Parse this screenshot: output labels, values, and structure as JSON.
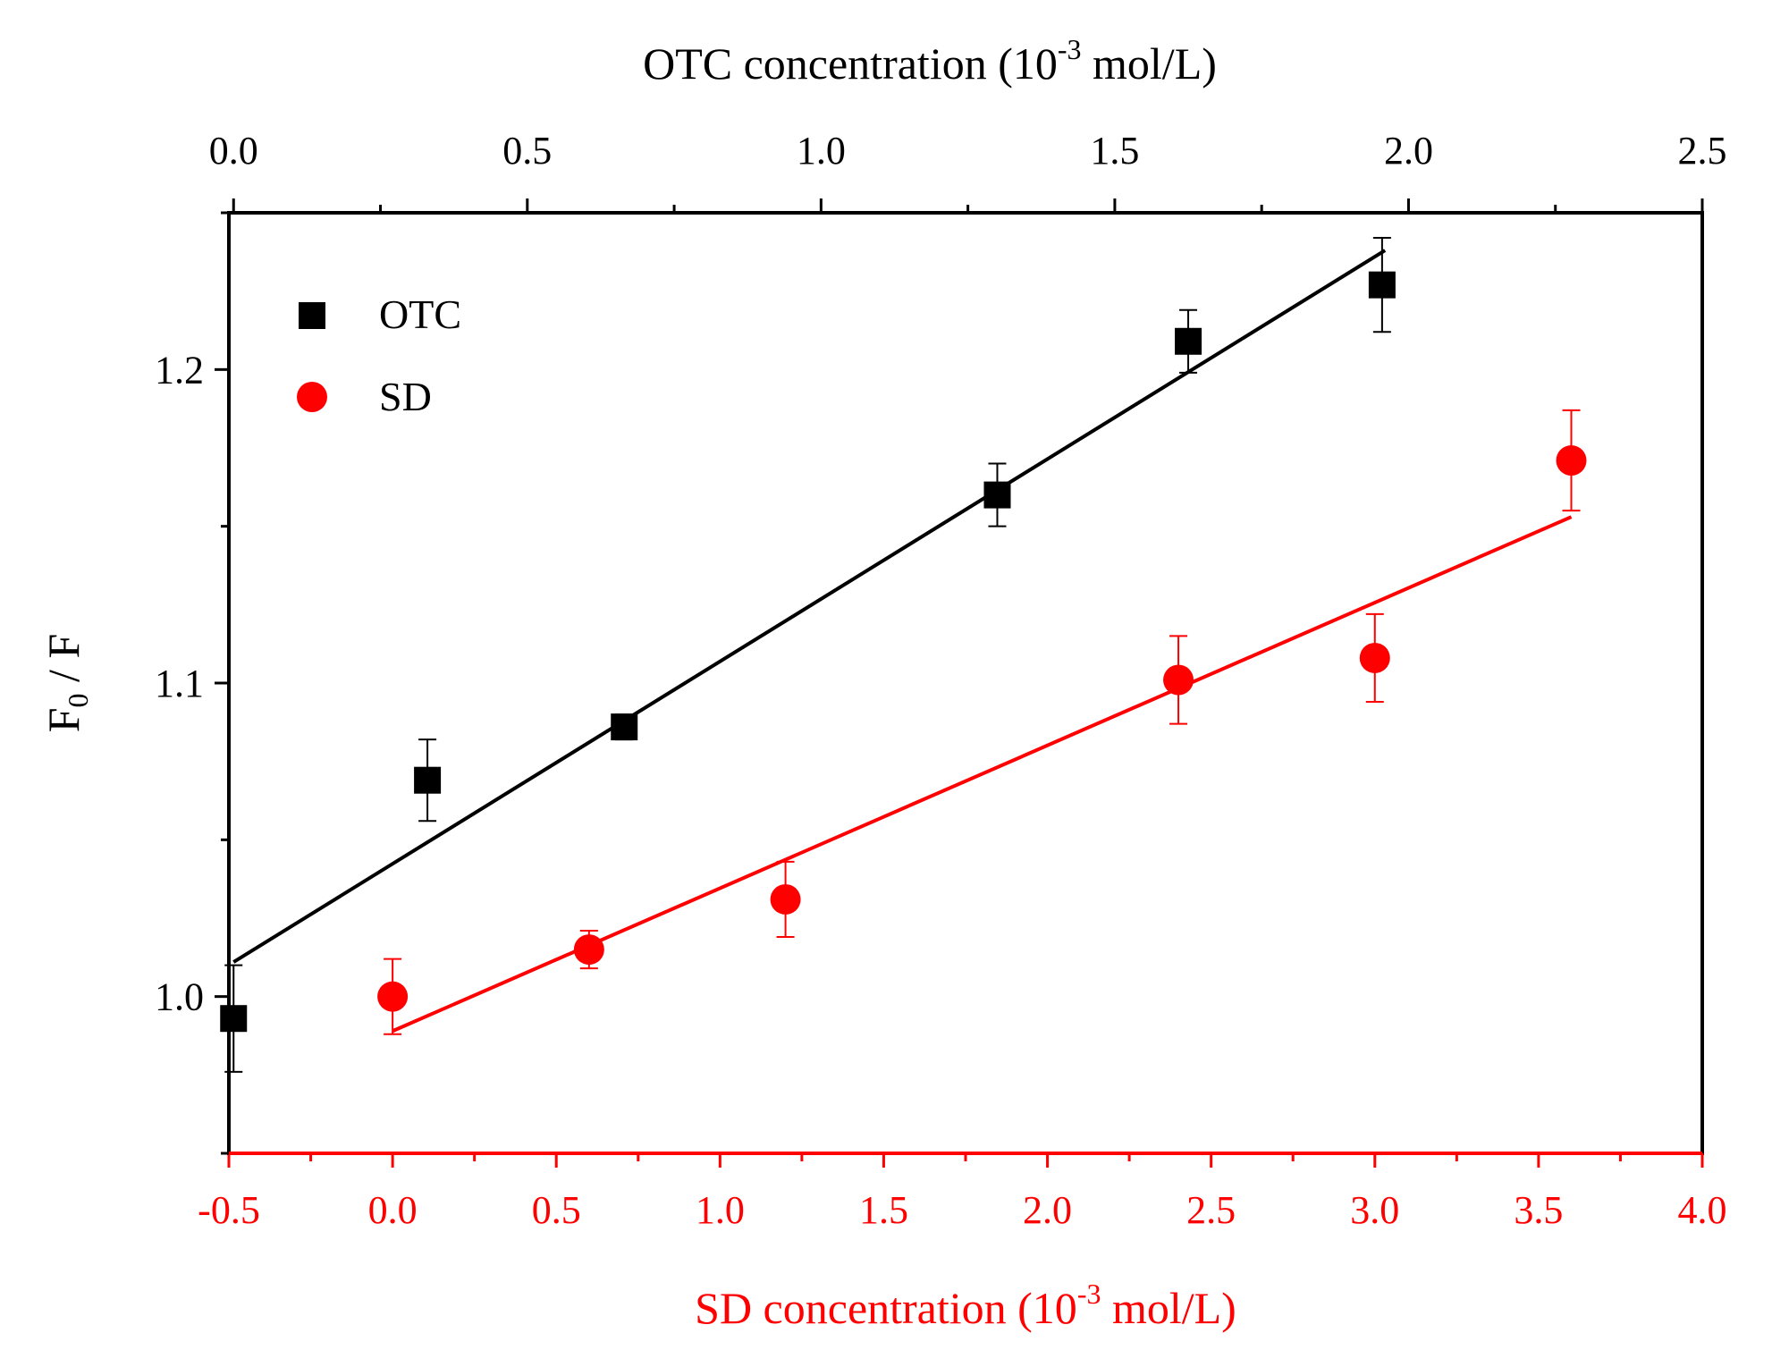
{
  "chart_data": {
    "type": "scatter",
    "ylabel": "F",
    "ylabel_subscript": "0",
    "ylabel_suffix": " / F",
    "ylim": [
      0.95,
      1.25
    ],
    "yticks": [
      "1.0",
      "1.1",
      "1.2"
    ],
    "bottom_axis": {
      "label_prefix": "SD concentration (10",
      "label_exp": "-3",
      "label_suffix": " mol/L)",
      "range": [
        -0.5,
        4.0
      ],
      "ticks": [
        "-0.5",
        "0.0",
        "0.5",
        "1.0",
        "1.5",
        "2.0",
        "2.5",
        "3.0",
        "3.5",
        "4.0"
      ]
    },
    "top_axis": {
      "label_prefix": "OTC concentration (10",
      "label_exp": "-3",
      "label_suffix": " mol/L)",
      "range": [
        -0.008,
        2.5
      ],
      "ticks": [
        "0.0",
        "0.5",
        "1.0",
        "1.5",
        "2.0",
        "2.5"
      ]
    },
    "series": [
      {
        "name": "OTC",
        "color": "#000000",
        "marker": "square",
        "axis": "top",
        "x": [
          0.0,
          0.33,
          0.665,
          1.3,
          1.625,
          1.955
        ],
        "y": [
          0.993,
          1.069,
          1.086,
          1.16,
          1.209,
          1.227
        ],
        "err": [
          0.017,
          0.013,
          0.004,
          0.01,
          0.01,
          0.015
        ],
        "fit": {
          "x": [
            0.0,
            1.96
          ],
          "y": [
            1.011,
            1.238
          ]
        }
      },
      {
        "name": "SD",
        "color": "#ff0000",
        "marker": "circle",
        "axis": "bottom",
        "x": [
          0.0,
          0.6,
          1.2,
          2.4,
          3.0,
          3.6
        ],
        "y": [
          1.0,
          1.015,
          1.031,
          1.101,
          1.108,
          1.171
        ],
        "err": [
          0.012,
          0.006,
          0.012,
          0.014,
          0.014,
          0.016
        ],
        "fit": {
          "x": [
            0.0,
            3.6
          ],
          "y": [
            0.989,
            1.153
          ]
        }
      }
    ],
    "legend_position": "top-left"
  }
}
